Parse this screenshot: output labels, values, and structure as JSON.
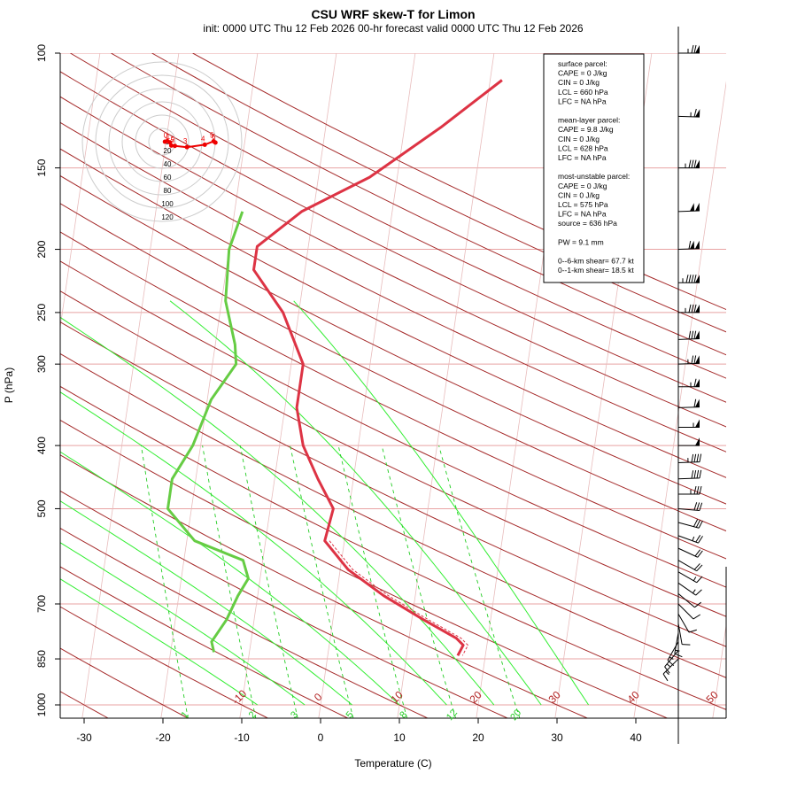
{
  "title": "CSU WRF skew-T for Limon",
  "subtitle": "init: 0000 UTC Thu 12 Feb 2026     00-hr forecast valid 0000 UTC Thu 12 Feb 2026",
  "colors": {
    "isotherm": "#b22222",
    "dry_adiabat": "#a52a2a",
    "mixing_ratio": "#22cc22",
    "moist_adiabat": "#33ee33",
    "temperature": "#dd3344",
    "dewpoint": "#66cc44",
    "hodograph": "#ee0000"
  },
  "chart_data": {
    "type": "line",
    "title": "CSU WRF skew-T for Limon",
    "xlabel": "Temperature (C)",
    "ylabel": "P (hPa)",
    "y_scale": "log",
    "xlim": [
      -33,
      52
    ],
    "ylim": [
      1050,
      100
    ],
    "x_ticks": [
      "-30",
      "-20",
      "-10",
      "0",
      "10",
      "20",
      "30",
      "40"
    ],
    "p_ticks": [
      "100",
      "150",
      "200",
      "250",
      "300",
      "400",
      "500",
      "700",
      "850",
      "1000"
    ],
    "isotherm_labels": [
      "-10",
      "0",
      "10",
      "20",
      "30",
      "40",
      "50"
    ],
    "mixing_ratio_labels": [
      "1",
      "2",
      "3",
      "5",
      "8",
      "12",
      "20"
    ],
    "series": [
      {
        "name": "temperature",
        "points": [
          [
            110,
            11.5
          ],
          [
            130,
            4.6
          ],
          [
            155,
            -3.5
          ],
          [
            175,
            -11.5
          ],
          [
            198,
            -16.5
          ],
          [
            215,
            -16.5
          ],
          [
            250,
            -12.0
          ],
          [
            300,
            -8.5
          ],
          [
            350,
            -8.5
          ],
          [
            400,
            -7.0
          ],
          [
            450,
            -4.5
          ],
          [
            500,
            -2.0
          ],
          [
            560,
            -2.5
          ],
          [
            620,
            1.0
          ],
          [
            680,
            6.0
          ],
          [
            740,
            11.5
          ],
          [
            790,
            16.0
          ],
          [
            810,
            17.0
          ],
          [
            840,
            16.5
          ]
        ]
      },
      {
        "name": "dewpoint",
        "points": [
          [
            175,
            -19.0
          ],
          [
            200,
            -20.0
          ],
          [
            240,
            -19.5
          ],
          [
            280,
            -17.5
          ],
          [
            300,
            -17.0
          ],
          [
            340,
            -19.5
          ],
          [
            400,
            -21.0
          ],
          [
            450,
            -23.0
          ],
          [
            500,
            -23.0
          ],
          [
            560,
            -19.0
          ],
          [
            600,
            -12.5
          ],
          [
            640,
            -11.5
          ],
          [
            680,
            -12.5
          ],
          [
            740,
            -13.5
          ],
          [
            800,
            -15.0
          ],
          [
            830,
            -14.5
          ]
        ]
      }
    ]
  },
  "hodograph": {
    "ring_labels": [
      "20",
      "40",
      "60",
      "80",
      "100",
      "120"
    ],
    "center_label": "0",
    "points": [
      [
        0.8,
        0
      ],
      [
        1.5,
        -0.6
      ],
      [
        2.2,
        0.8
      ],
      [
        2.6,
        4.5
      ],
      [
        3.6,
        4.8
      ],
      [
        7.0,
        6.3
      ],
      [
        12.0,
        3.5
      ],
      [
        14.5,
        -0.5
      ],
      [
        15.0,
        1.0
      ]
    ],
    "point_labels": [
      "0",
      "1",
      "1.5",
      "2",
      "3",
      "4",
      "5",
      "6"
    ]
  },
  "info_lines": [
    "surface parcel:",
    "CAPE = 0 J/kg",
    "CIN = 0 J/kg",
    "LCL = 660 hPa",
    "LFC = NA hPa",
    "",
    "mean-layer parcel:",
    "CAPE = 9.8 J/kg",
    "CIN = 0 J/kg",
    "LCL = 628 hPa",
    "LFC = NA hPa",
    "",
    "most-unstable parcel:",
    "CAPE = 0 J/kg",
    "CIN = 0 J/kg",
    "LCL = 575 hPa",
    "LFC = NA hPa",
    "source = 636 hPa",
    "",
    "PW =  9.1 mm",
    "",
    "0--6-km shear= 67.7 kt",
    "0--1-km shear= 18.5 kt"
  ],
  "wind_barbs": [
    [
      100,
      270,
      75
    ],
    [
      125,
      272,
      65
    ],
    [
      150,
      270,
      85
    ],
    [
      175,
      268,
      100
    ],
    [
      200,
      268,
      110
    ],
    [
      225,
      270,
      95
    ],
    [
      250,
      270,
      85
    ],
    [
      275,
      268,
      80
    ],
    [
      300,
      268,
      75
    ],
    [
      325,
      270,
      65
    ],
    [
      350,
      268,
      60
    ],
    [
      375,
      270,
      55
    ],
    [
      400,
      270,
      50
    ],
    [
      425,
      268,
      45
    ],
    [
      450,
      268,
      40
    ],
    [
      475,
      270,
      35
    ],
    [
      500,
      275,
      30
    ],
    [
      525,
      285,
      30
    ],
    [
      550,
      290,
      25
    ],
    [
      575,
      295,
      20
    ],
    [
      600,
      300,
      20
    ],
    [
      625,
      300,
      15
    ],
    [
      650,
      305,
      15
    ],
    [
      675,
      310,
      10
    ],
    [
      700,
      315,
      10
    ],
    [
      725,
      330,
      10
    ],
    [
      750,
      350,
      10
    ],
    [
      775,
      10,
      15
    ],
    [
      800,
      30,
      15
    ],
    [
      825,
      40,
      15
    ],
    [
      850,
      45,
      15
    ]
  ]
}
